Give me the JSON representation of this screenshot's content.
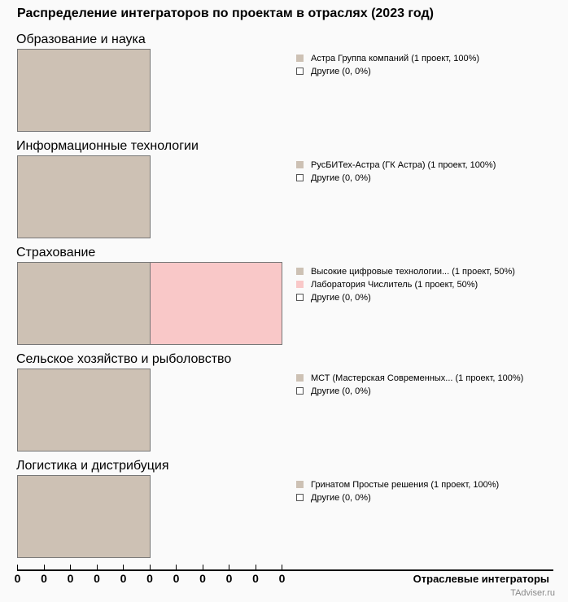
{
  "chart_data": {
    "type": "bar",
    "stacked": true,
    "orientation": "horizontal",
    "title": "Распределение интеграторов по проектам в отраслях (2023 год)",
    "xlabel": "Отраслевые интеграторы",
    "xlim": [
      0,
      2
    ],
    "tick_labels": [
      "0",
      "0",
      "0",
      "0",
      "0",
      "0",
      "0",
      "0",
      "0",
      "0",
      "0"
    ],
    "panels": [
      {
        "title": "Образование и наука",
        "series": [
          {
            "name": "Астра Группа компаний (1 проект, 100%)",
            "value": 1,
            "color": "#cdc1b4"
          },
          {
            "name": "Другие (0, 0%)",
            "value": 0,
            "color": "#ffffff"
          }
        ]
      },
      {
        "title": "Информационные технологии",
        "series": [
          {
            "name": "РусБИТех-Астра (ГК Астра) (1 проект, 100%)",
            "value": 1,
            "color": "#cdc1b4"
          },
          {
            "name": "Другие (0, 0%)",
            "value": 0,
            "color": "#ffffff"
          }
        ]
      },
      {
        "title": "Страхование",
        "series": [
          {
            "name": "Высокие цифровые технологии... (1 проект, 50%)",
            "value": 1,
            "color": "#cdc1b4"
          },
          {
            "name": "Лаборатория Числитель (1 проект, 50%)",
            "value": 1,
            "color": "#f9c8c8"
          },
          {
            "name": "Другие (0, 0%)",
            "value": 0,
            "color": "#ffffff"
          }
        ]
      },
      {
        "title": "Сельское хозяйство и рыболовство",
        "series": [
          {
            "name": "МСТ (Мастерская Современных... (1 проект, 100%)",
            "value": 1,
            "color": "#cdc1b4"
          },
          {
            "name": "Другие (0, 0%)",
            "value": 0,
            "color": "#ffffff"
          }
        ]
      },
      {
        "title": "Логистика и дистрибуция",
        "series": [
          {
            "name": "Гринатом Простые решения (1 проект, 100%)",
            "value": 1,
            "color": "#cdc1b4"
          },
          {
            "name": "Другие (0, 0%)",
            "value": 0,
            "color": "#ffffff"
          }
        ]
      }
    ]
  },
  "source": "TAdviser.ru"
}
